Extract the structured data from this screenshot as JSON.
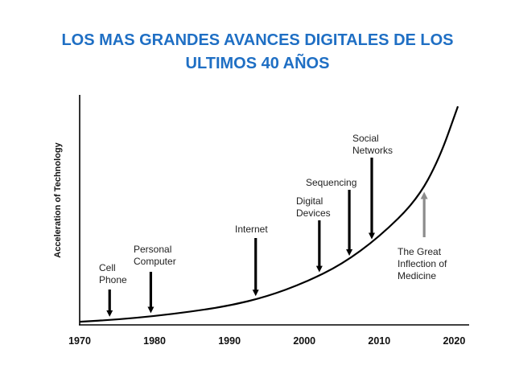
{
  "slide": {
    "title_line1": "LOS MAS GRANDES AVANCES DIGITALES DE LOS",
    "title_line2": "ULTIMOS 40 AÑOS"
  },
  "chart_data": {
    "type": "line",
    "title": "LOS MAS GRANDES AVANCES DIGITALES DE LOS ULTIMOS 40 AÑOS",
    "xlabel": "",
    "ylabel": "Acceleration of Technology",
    "xlim": [
      1970,
      2022
    ],
    "ylim": [
      0,
      100
    ],
    "x_ticks": [
      1970,
      1980,
      1990,
      2000,
      2010,
      2020
    ],
    "grid": false,
    "series": [
      {
        "name": "Acceleration of Technology",
        "x": [
          1970,
          1975,
          1980,
          1985,
          1990,
          1995,
          2000,
          2005,
          2010,
          2015,
          2018,
          2020.5
        ],
        "y": [
          1,
          2,
          3.5,
          5.5,
          8,
          12,
          18,
          26,
          38,
          54,
          72,
          95
        ]
      }
    ],
    "annotations": [
      {
        "lines": [
          "Cell",
          "Phone"
        ],
        "year": 1974,
        "color": "#000000"
      },
      {
        "lines": [
          "Personal",
          "Computer"
        ],
        "year": 1979.5,
        "color": "#000000"
      },
      {
        "lines": [
          "Internet"
        ],
        "year": 1993.5,
        "color": "#000000"
      },
      {
        "lines": [
          "Digital",
          "Devices"
        ],
        "year": 2002,
        "color": "#000000"
      },
      {
        "lines": [
          "Sequencing"
        ],
        "year": 2006,
        "color": "#000000"
      },
      {
        "lines": [
          "Social",
          "Networks"
        ],
        "year": 2009,
        "color": "#000000"
      },
      {
        "lines": [
          "The Great",
          "Inflection of",
          "Medicine"
        ],
        "year": 2016,
        "color": "#8c8c8c"
      }
    ]
  }
}
